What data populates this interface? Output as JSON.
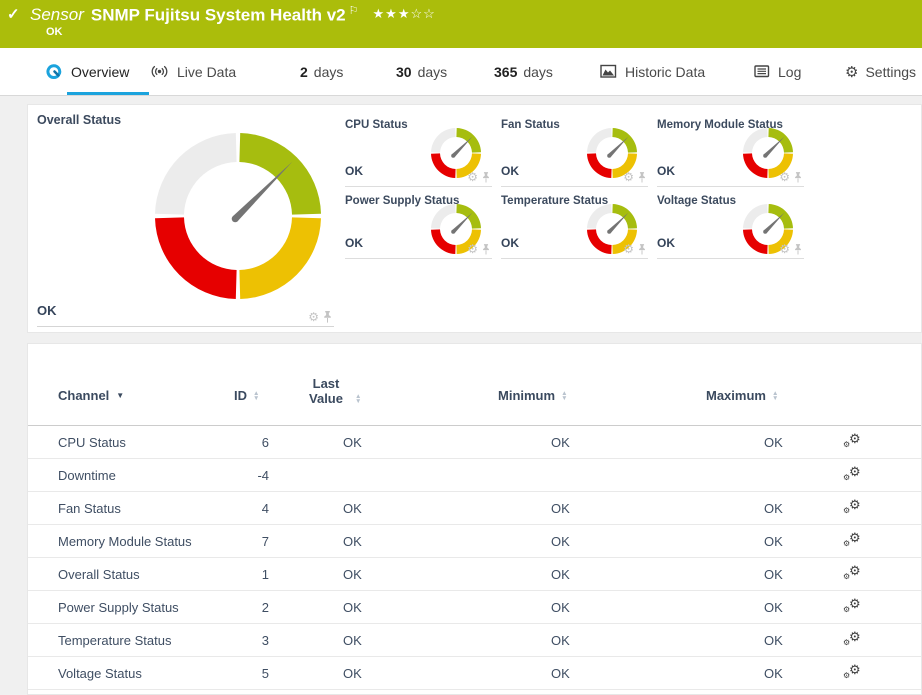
{
  "colors": {
    "header_green": "#abbd0b",
    "accent_blue": "#1ba3dd",
    "status_ok_green": "#a6bd0f",
    "warning_yellow": "#edc103",
    "error_red": "#e60000",
    "neutral_gray": "#ececec"
  },
  "icons": {
    "check": "✓",
    "flag": "⚐",
    "gear": "⚙",
    "sort_asc": "▲",
    "sort_desc": "▼",
    "sorted_caret": "▼"
  },
  "header": {
    "kind": "Sensor",
    "title": "SNMP Fujitsu System Health v2",
    "status": "OK",
    "rating_stars": "★★★☆☆"
  },
  "tabs": {
    "overview": {
      "label": "Overview",
      "active": true
    },
    "live_data": {
      "label": "Live Data"
    },
    "days2": {
      "num": "2",
      "label": "days"
    },
    "days30": {
      "num": "30",
      "label": "days"
    },
    "days365": {
      "num": "365",
      "label": "days"
    },
    "historic": {
      "label": "Historic Data"
    },
    "log": {
      "label": "Log"
    },
    "settings": {
      "label": "Settings"
    }
  },
  "overview": {
    "overall": {
      "title": "Overall Status",
      "value": "OK"
    },
    "mini_gauges": [
      {
        "title": "CPU Status",
        "value": "OK"
      },
      {
        "title": "Fan Status",
        "value": "OK"
      },
      {
        "title": "Memory Module Status",
        "value": "OK"
      },
      {
        "title": "Power Supply Status",
        "value": "OK"
      },
      {
        "title": "Temperature Status",
        "value": "OK"
      },
      {
        "title": "Voltage Status",
        "value": "OK"
      }
    ],
    "gauge": {
      "segment_colors": {
        "neutral": "#ececec",
        "ok": "#a6bd0f",
        "warning": "#edc103",
        "error": "#e60000"
      },
      "needle_angle_deg": -45,
      "needle_color": "#747474"
    }
  },
  "table": {
    "columns": {
      "channel": "Channel",
      "id": "ID",
      "last_value": "Last Value",
      "minimum": "Minimum",
      "maximum": "Maximum"
    },
    "rows": [
      {
        "channel": "CPU Status",
        "id": "6",
        "last": "OK",
        "min": "OK",
        "max": "OK"
      },
      {
        "channel": "Downtime",
        "id": "-4",
        "last": "",
        "min": "",
        "max": ""
      },
      {
        "channel": "Fan Status",
        "id": "4",
        "last": "OK",
        "min": "OK",
        "max": "OK"
      },
      {
        "channel": "Memory Module Status",
        "id": "7",
        "last": "OK",
        "min": "OK",
        "max": "OK"
      },
      {
        "channel": "Overall Status",
        "id": "1",
        "last": "OK",
        "min": "OK",
        "max": "OK"
      },
      {
        "channel": "Power Supply Status",
        "id": "2",
        "last": "OK",
        "min": "OK",
        "max": "OK"
      },
      {
        "channel": "Temperature Status",
        "id": "3",
        "last": "OK",
        "min": "OK",
        "max": "OK"
      },
      {
        "channel": "Voltage Status",
        "id": "5",
        "last": "OK",
        "min": "OK",
        "max": "OK"
      }
    ]
  }
}
